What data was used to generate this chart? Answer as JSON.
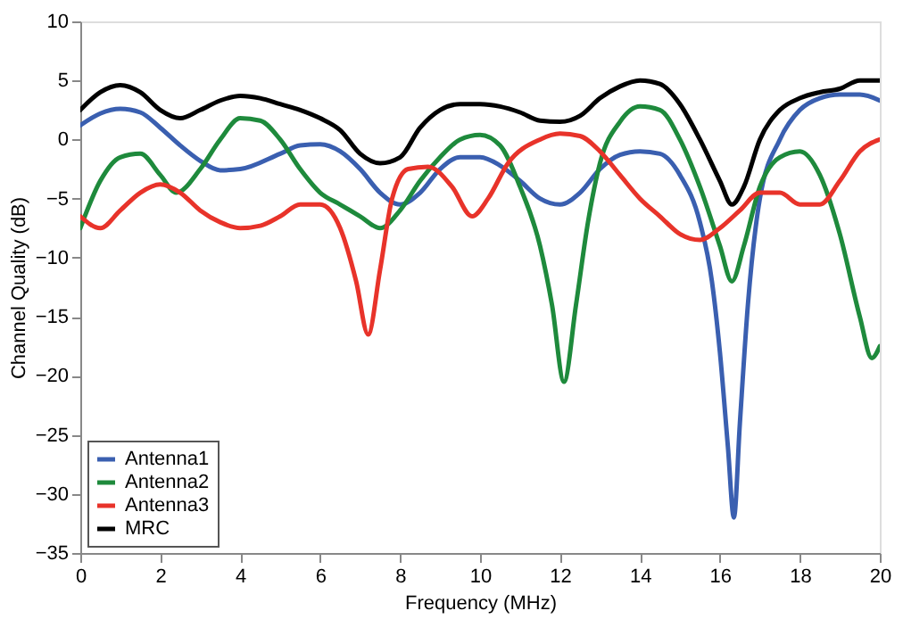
{
  "chart_data": {
    "type": "line",
    "xlabel": "Frequency (MHz)",
    "ylabel": "Channel Quality (dB)",
    "xlim": [
      0,
      20
    ],
    "ylim": [
      -35,
      10
    ],
    "xticks": [
      0,
      2,
      4,
      6,
      8,
      10,
      12,
      14,
      16,
      18,
      20
    ],
    "yticks": [
      -35,
      -30,
      -25,
      -20,
      -15,
      -10,
      -5,
      0,
      5,
      10
    ],
    "grid": false,
    "legend": "bottom left",
    "marker": "none",
    "line_style": "solid",
    "series": [
      {
        "name": "Antenna1",
        "color": "#3a5fb0",
        "x": [
          0,
          0.5,
          1,
          1.5,
          2,
          2.5,
          3,
          3.5,
          4,
          5,
          5.5,
          6,
          6.5,
          7,
          7.5,
          8,
          8.5,
          9,
          9.5,
          10,
          10.5,
          11,
          11.5,
          12,
          12.5,
          13,
          13.5,
          14,
          14.5,
          15,
          15.5,
          15.8,
          16,
          16.2,
          16.35,
          16.5,
          16.7,
          17,
          17.5,
          18,
          18.5,
          19,
          19.5,
          20
        ],
        "values": [
          1.2,
          2.2,
          2.6,
          2.3,
          1,
          -0.5,
          -1.8,
          -2.6,
          -2.5,
          -1.2,
          -0.5,
          -0.4,
          -1,
          -2.5,
          -4.5,
          -5.5,
          -4.5,
          -2.5,
          -1.5,
          -1.5,
          -2.2,
          -3.5,
          -5,
          -5.5,
          -4.5,
          -2.5,
          -1.3,
          -1,
          -1.2,
          -3,
          -7,
          -12,
          -18,
          -26,
          -32,
          -24,
          -14,
          -5,
          0,
          2.5,
          3.5,
          3.8,
          3.8,
          3.3
        ]
      },
      {
        "name": "Antenna2",
        "color": "#1e8a3c",
        "x": [
          0,
          0.5,
          1,
          1.5,
          2,
          2.4,
          3,
          3.5,
          4,
          4.5,
          5,
          5.5,
          6,
          6.5,
          7,
          7.5,
          8,
          8.5,
          9,
          9.5,
          10,
          10.5,
          11,
          11.5,
          11.8,
          12.1,
          12.4,
          12.7,
          13,
          13.5,
          14,
          14.5,
          15,
          15.5,
          16,
          16.3,
          16.6,
          17,
          17.5,
          18,
          18.5,
          19,
          19.5,
          19.8,
          20
        ],
        "values": [
          -7.5,
          -3.5,
          -1.5,
          -1.2,
          -3,
          -4.5,
          -2.5,
          0,
          1.8,
          1.6,
          0,
          -2.5,
          -4.5,
          -5.5,
          -6.5,
          -7.5,
          -6,
          -3.5,
          -1.5,
          0,
          0.4,
          -0.5,
          -4,
          -9,
          -14,
          -20.5,
          -14,
          -7,
          -2,
          1.5,
          2.8,
          2.5,
          0,
          -4,
          -9,
          -12,
          -9,
          -4,
          -1.5,
          -1,
          -3,
          -8,
          -15,
          -18.5,
          -17.5
        ]
      },
      {
        "name": "Antenna3",
        "color": "#e8332a",
        "x": [
          0,
          0.5,
          1,
          1.5,
          2,
          2.5,
          3,
          3.5,
          4,
          4.5,
          5,
          5.5,
          6,
          6.5,
          6.9,
          7.2,
          7.5,
          7.8,
          8.2,
          8.7,
          9.3,
          9.8,
          10.2,
          10.7,
          11.5,
          12,
          12.5,
          13,
          13.5,
          14,
          14.5,
          15,
          15.5,
          16,
          16.5,
          17,
          17.5,
          18,
          18.5,
          19,
          19.5,
          20
        ],
        "values": [
          -6.5,
          -7.5,
          -6,
          -4.5,
          -3.8,
          -4.5,
          -6,
          -7,
          -7.5,
          -7.3,
          -6.5,
          -5.5,
          -5.5,
          -7.5,
          -12,
          -16.5,
          -11,
          -5,
          -2.5,
          -2.3,
          -4,
          -6.5,
          -5,
          -2,
          0,
          0.5,
          0.3,
          -1,
          -3,
          -5,
          -6.5,
          -8,
          -8.5,
          -7.5,
          -6,
          -4.5,
          -4.5,
          -5.5,
          -5.5,
          -3.5,
          -1,
          0
        ]
      },
      {
        "name": "MRC",
        "color": "#000000",
        "x": [
          0,
          0.5,
          1,
          1.5,
          2,
          2.5,
          3,
          3.5,
          4,
          4.5,
          5,
          5.5,
          6,
          6.5,
          7,
          7.5,
          8,
          8.5,
          9,
          9.5,
          10,
          10.5,
          11,
          11.5,
          12,
          12.5,
          13,
          13.5,
          14,
          14.5,
          15,
          15.5,
          16,
          16.3,
          16.6,
          17,
          17.5,
          18,
          18.5,
          19,
          19.5,
          20
        ],
        "values": [
          2.5,
          4,
          4.6,
          4,
          2.5,
          1.8,
          2.5,
          3.3,
          3.7,
          3.5,
          3,
          2.5,
          1.8,
          0.8,
          -1.2,
          -2,
          -1.5,
          1,
          2.5,
          3,
          3,
          2.8,
          2.3,
          1.6,
          1.5,
          2,
          3.5,
          4.5,
          5,
          4.7,
          3,
          0,
          -3.5,
          -5.5,
          -4,
          0,
          2.5,
          3.5,
          4,
          4.3,
          5,
          5
        ]
      }
    ]
  }
}
